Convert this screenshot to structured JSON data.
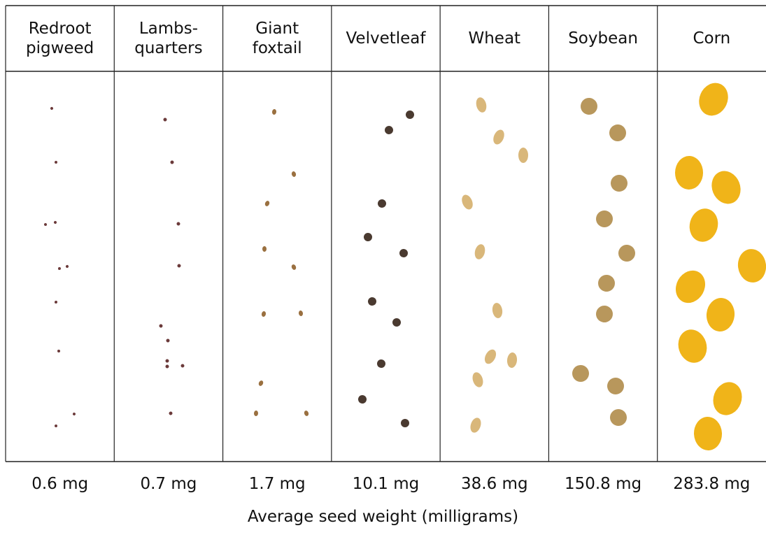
{
  "columns": [
    {
      "header": "Redroot\npigweed",
      "weight": "0.6 mg"
    },
    {
      "header": "Lambs-\nquarters",
      "weight": "0.7 mg"
    },
    {
      "header": "Giant\nfoxtail",
      "weight": "1.7 mg"
    },
    {
      "header": "Velvetleaf",
      "weight": "10.1 mg"
    },
    {
      "header": "Wheat",
      "weight": "38.6 mg"
    },
    {
      "header": "Soybean",
      "weight": "150.8 mg"
    },
    {
      "header": "Corn",
      "weight": "283.8 mg"
    }
  ],
  "caption": "Average seed weight (milligrams)"
}
